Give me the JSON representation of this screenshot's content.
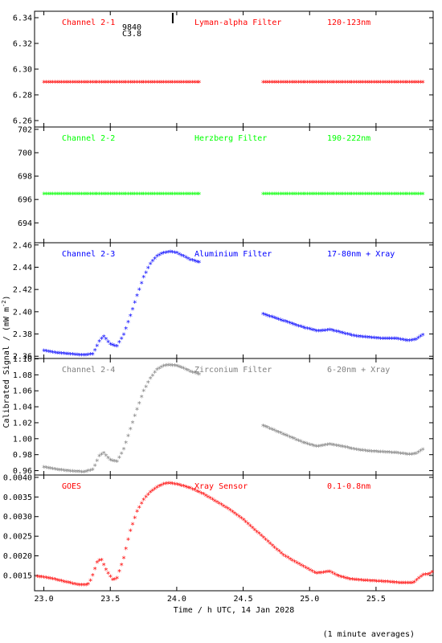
{
  "chart_data": {
    "type": "scatter",
    "xlabel": "Time / h UTC, 14 Jan 2028",
    "ylabel": "Calibrated Signal / (mW m",
    "ylabel_sup": "-2",
    "ylabel_close": ")",
    "footnote": "(1 minute averages)",
    "xlim": [
      22.93,
      25.93
    ],
    "xticks": [
      "23.0",
      "23.5",
      "24.0",
      "24.5",
      "25.0",
      "25.5"
    ],
    "grid": false,
    "annotation": {
      "x": 23.97,
      "lines": [
        "9840",
        "C3.8"
      ]
    },
    "panels": [
      {
        "name": "Channel 2-1",
        "filter": "Lyman-alpha Filter",
        "band": "120-123nm",
        "color": "#ff0000",
        "ylim": [
          6.255,
          6.345
        ],
        "yticks": [
          "6.26",
          "6.28",
          "6.30",
          "6.32",
          "6.34"
        ],
        "segments": [
          {
            "x": [
              23.0,
              24.18
            ],
            "y": [
              6.289,
              6.289
            ]
          },
          {
            "x": [
              24.65,
              25.86
            ],
            "y": [
              6.289,
              6.289
            ]
          }
        ]
      },
      {
        "name": "Channel 2-2",
        "filter": "Herzberg Filter",
        "band": "190-222nm",
        "color": "#00ff00",
        "ylim": [
          692.3,
          702.2
        ],
        "yticks": [
          "694",
          "696",
          "698",
          "700",
          "702"
        ],
        "segments": [
          {
            "x": [
              23.0,
              24.18
            ],
            "y": [
              696.4,
              696.4
            ]
          },
          {
            "x": [
              24.65,
              25.86
            ],
            "y": [
              696.4,
              696.4
            ]
          }
        ]
      },
      {
        "name": "Channel 2-3",
        "filter": "Aluminium Filter",
        "band": "17-80nm + Xray",
        "color": "#0000ff",
        "ylim": [
          2.358,
          2.462
        ],
        "yticks": [
          "2.36",
          "2.38",
          "2.40",
          "2.42",
          "2.44",
          "2.46"
        ],
        "segments": [
          {
            "x": [
              23.0,
              23.1,
              23.2,
              23.3,
              23.37,
              23.42,
              23.45,
              23.5,
              23.55,
              23.6,
              23.65,
              23.7,
              23.75,
              23.8,
              23.85,
              23.9,
              23.95,
              24.0,
              24.05,
              24.1,
              24.18
            ],
            "y": [
              2.364,
              2.362,
              2.361,
              2.36,
              2.361,
              2.373,
              2.377,
              2.37,
              2.368,
              2.378,
              2.395,
              2.413,
              2.43,
              2.442,
              2.449,
              2.452,
              2.453,
              2.452,
              2.449,
              2.446,
              2.443
            ]
          },
          {
            "x": [
              24.65,
              24.75,
              24.85,
              24.95,
              25.05,
              25.1,
              25.15,
              25.25,
              25.35,
              25.45,
              25.55,
              25.65,
              25.75,
              25.8,
              25.86
            ],
            "y": [
              2.397,
              2.393,
              2.389,
              2.385,
              2.382,
              2.382,
              2.383,
              2.38,
              2.377,
              2.376,
              2.375,
              2.375,
              2.373,
              2.374,
              2.379
            ]
          }
        ]
      },
      {
        "name": "Channel 2-4",
        "filter": "Zirconium Filter",
        "band": "6-20nm + Xray",
        "color": "#808080",
        "ylim": [
          0.9545,
          1.1005
        ],
        "yticks": [
          "0.96",
          "0.98",
          "1.00",
          "1.02",
          "1.04",
          "1.06",
          "1.08",
          "1.10"
        ],
        "segments": [
          {
            "x": [
              23.0,
              23.1,
              23.2,
              23.3,
              23.37,
              23.42,
              23.45,
              23.5,
              23.55,
              23.6,
              23.65,
              23.7,
              23.75,
              23.8,
              23.85,
              23.9,
              23.95,
              24.0,
              24.05,
              24.1,
              24.18
            ],
            "y": [
              0.963,
              0.96,
              0.958,
              0.957,
              0.96,
              0.978,
              0.981,
              0.972,
              0.97,
              0.985,
              1.01,
              1.035,
              1.058,
              1.074,
              1.085,
              1.09,
              1.091,
              1.09,
              1.087,
              1.083,
              1.079
            ]
          },
          {
            "x": [
              24.65,
              24.75,
              24.85,
              24.95,
              25.05,
              25.1,
              25.15,
              25.25,
              25.35,
              25.45,
              25.55,
              25.65,
              25.75,
              25.8,
              25.86
            ],
            "y": [
              1.015,
              1.008,
              1.001,
              0.994,
              0.989,
              0.99,
              0.992,
              0.989,
              0.985,
              0.983,
              0.982,
              0.981,
              0.979,
              0.98,
              0.986
            ]
          }
        ]
      },
      {
        "name": "GOES",
        "filter": "Xray Sensor",
        "band": "0.1-0.8nm",
        "color": "#ff0000",
        "ylim": [
          0.00111,
          0.00406
        ],
        "yticks": [
          "0.0015",
          "0.0020",
          "0.0025",
          "0.0030",
          "0.0035",
          "0.0040"
        ],
        "segments": [
          {
            "x": [
              22.95,
              23.05,
              23.15,
              23.25,
              23.33,
              23.36,
              23.4,
              23.43,
              23.47,
              23.52,
              23.55,
              23.6,
              23.65,
              23.7,
              23.75,
              23.8,
              23.85,
              23.9,
              23.95,
              24.0,
              24.1,
              24.2,
              24.3,
              24.4,
              24.5,
              24.6,
              24.7,
              24.8,
              24.9,
              25.0,
              25.05,
              25.1,
              25.15,
              25.2,
              25.3,
              25.4,
              25.5,
              25.6,
              25.7,
              25.78,
              25.82,
              25.86,
              25.9,
              25.93
            ],
            "y": [
              0.00145,
              0.0014,
              0.00132,
              0.00124,
              0.00123,
              0.0014,
              0.0018,
              0.0019,
              0.0016,
              0.00135,
              0.0014,
              0.0019,
              0.0026,
              0.0031,
              0.0034,
              0.0036,
              0.00372,
              0.0038,
              0.00383,
              0.0038,
              0.0037,
              0.00355,
              0.00335,
              0.00315,
              0.0029,
              0.0026,
              0.0023,
              0.002,
              0.0018,
              0.00162,
              0.00153,
              0.00155,
              0.00158,
              0.00148,
              0.00138,
              0.00135,
              0.00133,
              0.00131,
              0.00128,
              0.00128,
              0.0014,
              0.0015,
              0.0015,
              0.00158
            ]
          }
        ]
      }
    ]
  }
}
